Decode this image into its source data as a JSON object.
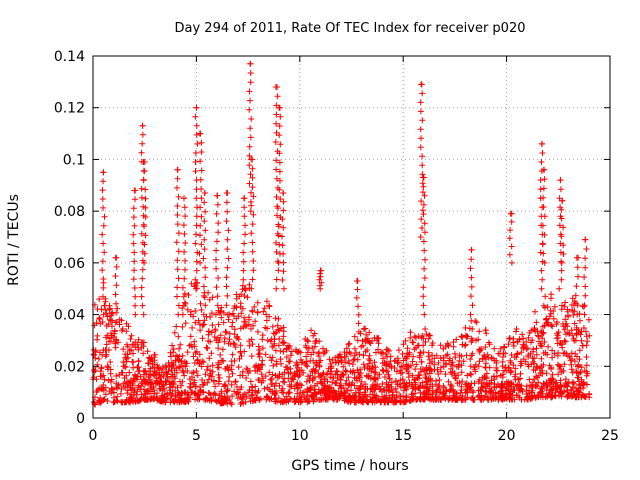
{
  "chart_data": {
    "type": "scatter",
    "title": "Day 294 of 2011, Rate Of TEC Index for receiver p020",
    "xlabel": "GPS time / hours",
    "ylabel": "ROTI / TECUs",
    "xlim": [
      0,
      25
    ],
    "ylim": [
      0,
      0.14
    ],
    "x_ticks": [
      "0",
      "5",
      "10",
      "15",
      "20",
      "25"
    ],
    "y_ticks": [
      "0",
      "0.02",
      "0.04",
      "0.06",
      "0.08",
      "0.1",
      "0.12",
      "0.14"
    ],
    "x_tick_values": [
      0,
      5,
      10,
      15,
      20,
      25
    ],
    "y_tick_values": [
      0,
      0.02,
      0.04,
      0.06,
      0.08,
      0.1,
      0.12,
      0.14
    ],
    "grid": true,
    "marker": "+",
    "marker_color": "#ff0000",
    "baseline_profile": {
      "x": [
        0,
        0.5,
        1,
        1.5,
        2,
        2.5,
        3,
        3.5,
        4,
        4.5,
        5,
        5.5,
        6,
        6.5,
        7,
        7.5,
        8,
        8.5,
        9,
        9.5,
        10,
        10.5,
        11,
        11.5,
        12,
        12.5,
        13,
        13.5,
        14,
        14.5,
        15,
        15.5,
        16,
        16.5,
        17,
        17.5,
        18,
        18.5,
        19,
        19.5,
        20,
        20.5,
        21,
        21.5,
        22,
        22.5,
        23,
        23.5,
        24
      ],
      "y_low": [
        0.005,
        0.006,
        0.006,
        0.006,
        0.006,
        0.007,
        0.007,
        0.006,
        0.006,
        0.006,
        0.007,
        0.007,
        0.006,
        0.005,
        0.005,
        0.006,
        0.007,
        0.007,
        0.006,
        0.006,
        0.006,
        0.006,
        0.007,
        0.007,
        0.007,
        0.006,
        0.006,
        0.006,
        0.006,
        0.006,
        0.006,
        0.007,
        0.007,
        0.007,
        0.007,
        0.007,
        0.007,
        0.007,
        0.007,
        0.007,
        0.007,
        0.007,
        0.007,
        0.008,
        0.008,
        0.008,
        0.008,
        0.008,
        0.008
      ],
      "y_high": [
        0.045,
        0.055,
        0.045,
        0.04,
        0.035,
        0.03,
        0.025,
        0.02,
        0.035,
        0.05,
        0.055,
        0.05,
        0.045,
        0.04,
        0.05,
        0.055,
        0.05,
        0.045,
        0.04,
        0.03,
        0.03,
        0.035,
        0.03,
        0.025,
        0.025,
        0.03,
        0.035,
        0.035,
        0.03,
        0.025,
        0.03,
        0.035,
        0.035,
        0.03,
        0.03,
        0.03,
        0.035,
        0.04,
        0.035,
        0.025,
        0.03,
        0.035,
        0.03,
        0.045,
        0.05,
        0.045,
        0.045,
        0.05,
        0.04
      ]
    },
    "spikes": [
      {
        "x": 0.5,
        "ymin": 0.04,
        "ymax": 0.095
      },
      {
        "x": 1.1,
        "ymin": 0.03,
        "ymax": 0.062
      },
      {
        "x": 2.0,
        "ymin": 0.04,
        "ymax": 0.088
      },
      {
        "x": 2.4,
        "ymin": 0.04,
        "ymax": 0.113
      },
      {
        "x": 2.5,
        "ymin": 0.06,
        "ymax": 0.099
      },
      {
        "x": 4.1,
        "ymin": 0.04,
        "ymax": 0.096
      },
      {
        "x": 4.4,
        "ymin": 0.04,
        "ymax": 0.085
      },
      {
        "x": 5.0,
        "ymin": 0.05,
        "ymax": 0.12
      },
      {
        "x": 5.2,
        "ymin": 0.06,
        "ymax": 0.11
      },
      {
        "x": 5.4,
        "ymin": 0.04,
        "ymax": 0.087
      },
      {
        "x": 6.0,
        "ymin": 0.04,
        "ymax": 0.086
      },
      {
        "x": 6.5,
        "ymin": 0.04,
        "ymax": 0.087
      },
      {
        "x": 7.3,
        "ymin": 0.05,
        "ymax": 0.085
      },
      {
        "x": 7.6,
        "ymin": 0.08,
        "ymax": 0.137
      },
      {
        "x": 7.7,
        "ymin": 0.05,
        "ymax": 0.1
      },
      {
        "x": 8.9,
        "ymin": 0.05,
        "ymax": 0.128
      },
      {
        "x": 9.0,
        "ymin": 0.06,
        "ymax": 0.12
      },
      {
        "x": 9.2,
        "ymin": 0.05,
        "ymax": 0.087
      },
      {
        "x": 11.0,
        "ymin": 0.05,
        "ymax": 0.057
      },
      {
        "x": 12.8,
        "ymin": 0.03,
        "ymax": 0.053
      },
      {
        "x": 15.9,
        "ymin": 0.07,
        "ymax": 0.129
      },
      {
        "x": 16.0,
        "ymin": 0.04,
        "ymax": 0.093
      },
      {
        "x": 18.3,
        "ymin": 0.04,
        "ymax": 0.065
      },
      {
        "x": 20.2,
        "ymin": 0.06,
        "ymax": 0.079
      },
      {
        "x": 21.7,
        "ymin": 0.05,
        "ymax": 0.106
      },
      {
        "x": 21.8,
        "ymin": 0.06,
        "ymax": 0.096
      },
      {
        "x": 22.6,
        "ymin": 0.05,
        "ymax": 0.092
      },
      {
        "x": 22.7,
        "ymin": 0.06,
        "ymax": 0.084
      },
      {
        "x": 23.4,
        "ymin": 0.04,
        "ymax": 0.062
      },
      {
        "x": 23.8,
        "ymin": 0.04,
        "ymax": 0.069
      }
    ],
    "sample_count": 2600
  }
}
